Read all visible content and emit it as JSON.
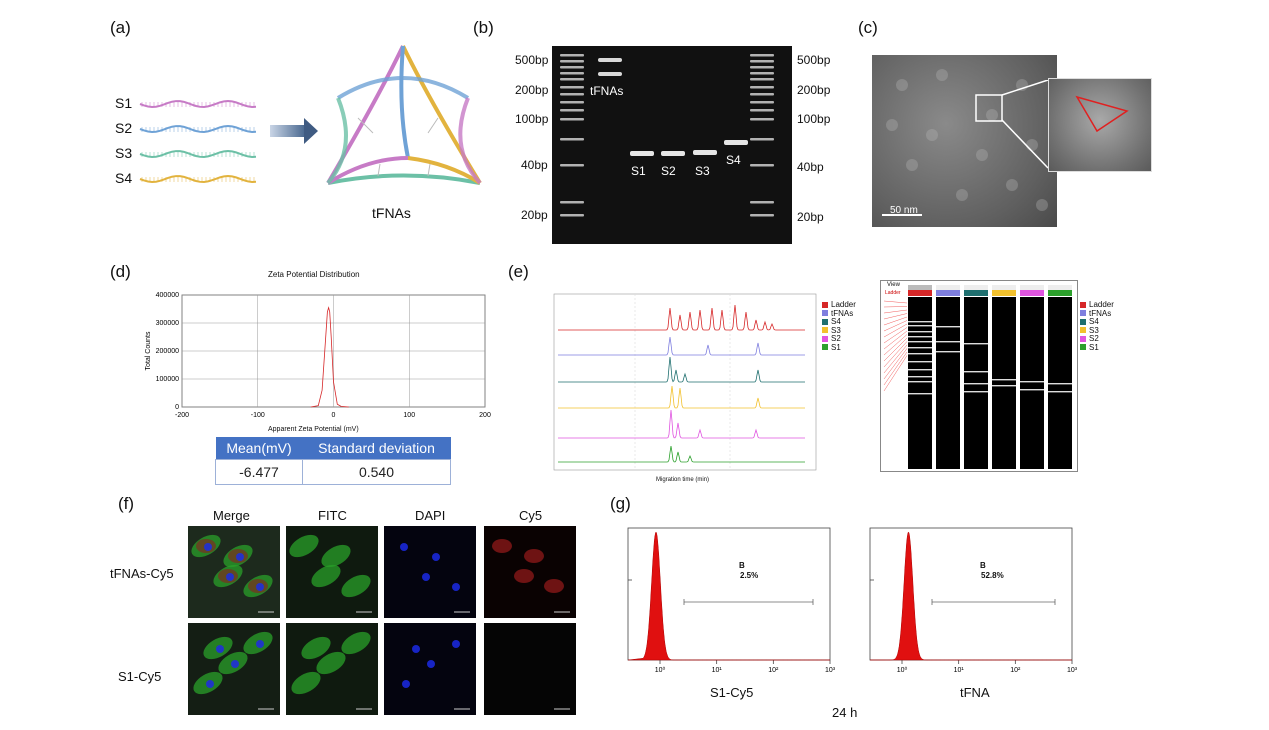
{
  "panels": {
    "a": {
      "label": "(a)",
      "strands": [
        {
          "name": "S1",
          "color": "#c77bc6"
        },
        {
          "name": "S2",
          "color": "#6fa2d6"
        },
        {
          "name": "S3",
          "color": "#6cc0a6"
        },
        {
          "name": "S4",
          "color": "#e2b33e"
        }
      ],
      "product_label": "tFNAs"
    },
    "b": {
      "label": "(b)",
      "ladder_left": [
        "500bp",
        "200bp",
        "100bp",
        "40bp",
        "20bp"
      ],
      "ladder_right": [
        "500bp",
        "200bp",
        "100bp",
        "40bp",
        "20bp"
      ],
      "lane_labels": [
        "tFNAs",
        "S1",
        "S2",
        "S3",
        "S4"
      ]
    },
    "c": {
      "label": "(c)",
      "scale_bar": "50 nm"
    },
    "d": {
      "label": "(d)",
      "chart_title": "Zeta Potential Distribution",
      "xlabel": "Apparent Zeta Potential (mV)",
      "ylabel": "Total Counts",
      "table": {
        "headers": [
          "Mean(mV)",
          "Standard deviation"
        ],
        "values": [
          "-6.477",
          "0.540"
        ]
      }
    },
    "e": {
      "label": "(e)",
      "legend": [
        {
          "name": "Ladder",
          "color": "#d62728"
        },
        {
          "name": "tFNAs",
          "color": "#7f7fdf"
        },
        {
          "name": "S4",
          "color": "#1f6f6f"
        },
        {
          "name": "S3",
          "color": "#f2c12e"
        },
        {
          "name": "S2",
          "color": "#e055e0"
        },
        {
          "name": "S1",
          "color": "#2ca02c"
        }
      ],
      "xlabel": "Migration time (min)",
      "lane_header": "View",
      "lane_header2": "Ladder"
    },
    "f": {
      "label": "(f)",
      "columns": [
        "Merge",
        "FITC",
        "DAPI",
        "Cy5"
      ],
      "rows": [
        "tFNAs-Cy5",
        "S1-Cy5"
      ]
    },
    "g": {
      "label": "(g)",
      "time_label": "24 h",
      "plots": [
        {
          "sample": "S1-Cy5",
          "gate": "B",
          "percent": "2.5%",
          "peak_x": 0.85
        },
        {
          "sample": "tFNA",
          "gate": "B",
          "percent": "52.8%",
          "peak_x": 1.3
        }
      ],
      "ticks": [
        "10⁰",
        "10¹",
        "10²",
        "10³"
      ]
    }
  },
  "chart_data": [
    {
      "type": "line",
      "title": "Zeta Potential Distribution",
      "xlabel": "Apparent Zeta Potential (mV)",
      "ylabel": "Total Counts",
      "xlim": [
        -200,
        200
      ],
      "ylim": [
        0,
        400000
      ],
      "x_ticks": [
        "-200",
        "-100",
        "0",
        "100",
        "200"
      ],
      "y_ticks": [
        "0",
        "100000",
        "200000",
        "300000",
        "400000"
      ],
      "series": [
        {
          "x": [
            -30,
            -20,
            -15,
            -10,
            -8,
            -6.5,
            -5,
            -3,
            0,
            5,
            10,
            20
          ],
          "y": [
            0,
            5000,
            60000,
            260000,
            340000,
            355000,
            340000,
            250000,
            90000,
            10000,
            2000,
            0
          ]
        }
      ],
      "grid": true
    }
  ]
}
